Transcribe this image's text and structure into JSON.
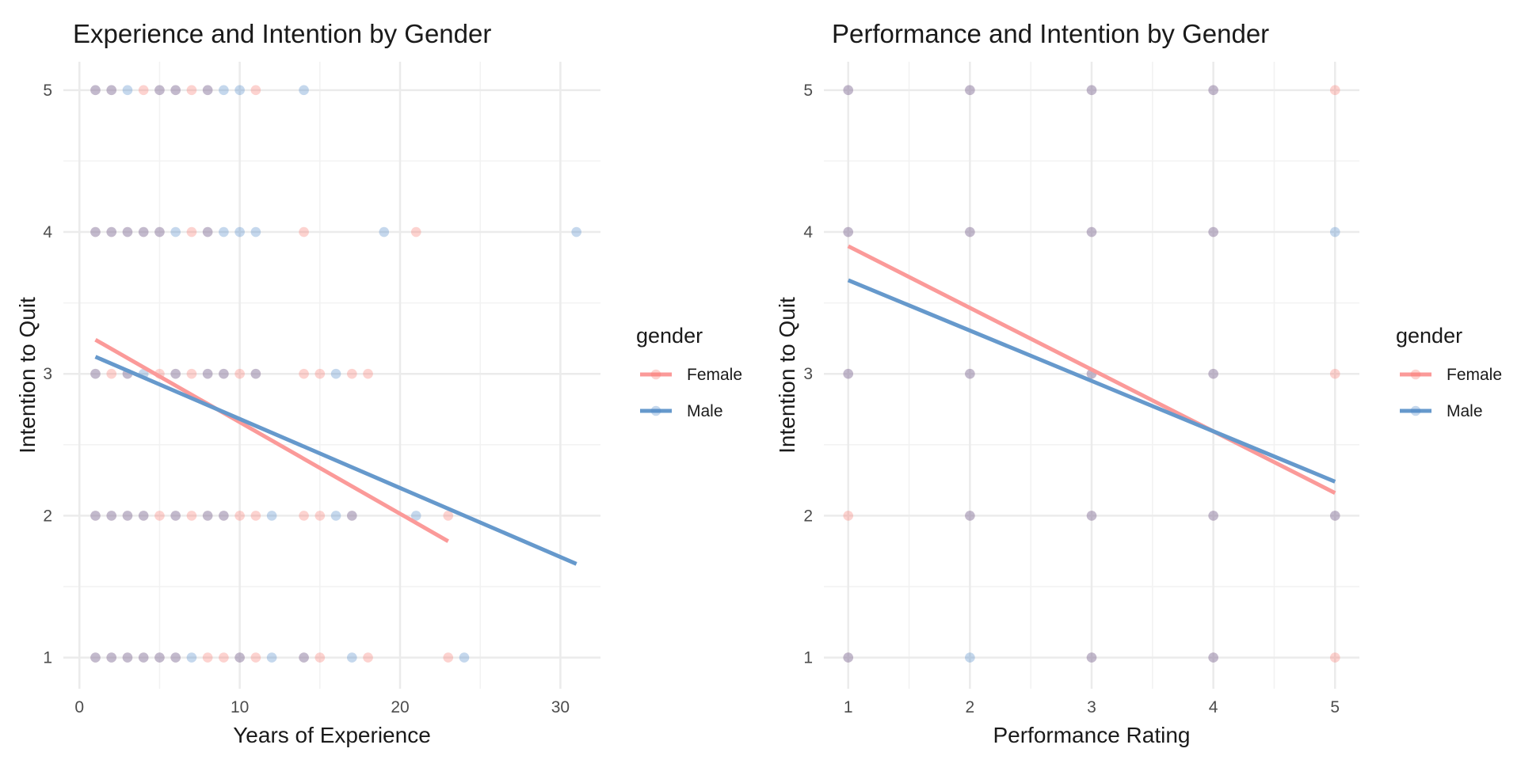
{
  "chart_data": [
    {
      "type": "scatter",
      "title": "Experience and Intention by Gender",
      "xlabel": "Years of Experience",
      "ylabel": "Intention to Quit",
      "xlim": [
        -1,
        32.5
      ],
      "ylim": [
        0.78,
        5.2
      ],
      "xticks": [
        0,
        10,
        20,
        30
      ],
      "yticks": [
        1,
        2,
        3,
        4,
        5
      ],
      "grid": true,
      "legend": {
        "title": "gender",
        "position": "right",
        "entries": [
          "Female",
          "Male"
        ]
      },
      "colors": {
        "Female": "#f8766d",
        "Male": "#4a86c8",
        "Female_line": "#fb9a99",
        "Male_line": "#6699cc"
      },
      "series": [
        {
          "name": "Female",
          "points": [
            [
              1,
              5
            ],
            [
              2,
              5
            ],
            [
              4,
              5
            ],
            [
              5,
              5
            ],
            [
              6,
              5
            ],
            [
              7,
              5
            ],
            [
              8,
              5
            ],
            [
              11,
              5
            ],
            [
              1,
              4
            ],
            [
              2,
              4
            ],
            [
              3,
              4
            ],
            [
              4,
              4
            ],
            [
              5,
              4
            ],
            [
              7,
              4
            ],
            [
              8,
              4
            ],
            [
              14,
              4
            ],
            [
              21,
              4
            ],
            [
              1,
              3
            ],
            [
              2,
              3
            ],
            [
              3,
              3
            ],
            [
              5,
              3
            ],
            [
              6,
              3
            ],
            [
              7,
              3
            ],
            [
              8,
              3
            ],
            [
              9,
              3
            ],
            [
              10,
              3
            ],
            [
              11,
              3
            ],
            [
              14,
              3
            ],
            [
              15,
              3
            ],
            [
              17,
              3
            ],
            [
              18,
              3
            ],
            [
              1,
              2
            ],
            [
              2,
              2
            ],
            [
              3,
              2
            ],
            [
              4,
              2
            ],
            [
              5,
              2
            ],
            [
              6,
              2
            ],
            [
              7,
              2
            ],
            [
              8,
              2
            ],
            [
              9,
              2
            ],
            [
              10,
              2
            ],
            [
              11,
              2
            ],
            [
              14,
              2
            ],
            [
              15,
              2
            ],
            [
              17,
              2
            ],
            [
              23,
              2
            ],
            [
              1,
              1
            ],
            [
              2,
              1
            ],
            [
              3,
              1
            ],
            [
              4,
              1
            ],
            [
              5,
              1
            ],
            [
              6,
              1
            ],
            [
              8,
              1
            ],
            [
              9,
              1
            ],
            [
              10,
              1
            ],
            [
              11,
              1
            ],
            [
              14,
              1
            ],
            [
              15,
              1
            ],
            [
              18,
              1
            ],
            [
              23,
              1
            ]
          ],
          "fit": [
            [
              1,
              3.24
            ],
            [
              23,
              1.82
            ]
          ]
        },
        {
          "name": "Male",
          "points": [
            [
              1,
              5
            ],
            [
              2,
              5
            ],
            [
              3,
              5
            ],
            [
              5,
              5
            ],
            [
              6,
              5
            ],
            [
              8,
              5
            ],
            [
              9,
              5
            ],
            [
              10,
              5
            ],
            [
              14,
              5
            ],
            [
              1,
              4
            ],
            [
              2,
              4
            ],
            [
              3,
              4
            ],
            [
              4,
              4
            ],
            [
              5,
              4
            ],
            [
              6,
              4
            ],
            [
              8,
              4
            ],
            [
              9,
              4
            ],
            [
              10,
              4
            ],
            [
              11,
              4
            ],
            [
              19,
              4
            ],
            [
              31,
              4
            ],
            [
              1,
              3
            ],
            [
              3,
              3
            ],
            [
              4,
              3
            ],
            [
              6,
              3
            ],
            [
              8,
              3
            ],
            [
              9,
              3
            ],
            [
              11,
              3
            ],
            [
              16,
              3
            ],
            [
              1,
              2
            ],
            [
              2,
              2
            ],
            [
              3,
              2
            ],
            [
              4,
              2
            ],
            [
              6,
              2
            ],
            [
              8,
              2
            ],
            [
              9,
              2
            ],
            [
              12,
              2
            ],
            [
              16,
              2
            ],
            [
              17,
              2
            ],
            [
              21,
              2
            ],
            [
              1,
              1
            ],
            [
              2,
              1
            ],
            [
              3,
              1
            ],
            [
              4,
              1
            ],
            [
              5,
              1
            ],
            [
              6,
              1
            ],
            [
              7,
              1
            ],
            [
              10,
              1
            ],
            [
              12,
              1
            ],
            [
              14,
              1
            ],
            [
              17,
              1
            ],
            [
              24,
              1
            ]
          ],
          "fit": [
            [
              1,
              3.12
            ],
            [
              31,
              1.66
            ]
          ]
        }
      ]
    },
    {
      "type": "scatter",
      "title": "Performance and Intention by Gender",
      "xlabel": "Performance Rating",
      "ylabel": "Intention to Quit",
      "xlim": [
        0.8,
        5.2
      ],
      "ylim": [
        0.78,
        5.2
      ],
      "xticks": [
        1,
        2,
        3,
        4,
        5
      ],
      "yticks": [
        1,
        2,
        3,
        4,
        5
      ],
      "grid": true,
      "legend": {
        "title": "gender",
        "position": "right",
        "entries": [
          "Female",
          "Male"
        ]
      },
      "colors": {
        "Female": "#f8766d",
        "Male": "#4a86c8",
        "Female_line": "#fb9a99",
        "Male_line": "#6699cc"
      },
      "series": [
        {
          "name": "Female",
          "points": [
            [
              1,
              1
            ],
            [
              1,
              2
            ],
            [
              1,
              3
            ],
            [
              1,
              4
            ],
            [
              1,
              5
            ],
            [
              2,
              2
            ],
            [
              2,
              3
            ],
            [
              2,
              4
            ],
            [
              2,
              5
            ],
            [
              3,
              1
            ],
            [
              3,
              2
            ],
            [
              3,
              3
            ],
            [
              3,
              4
            ],
            [
              3,
              5
            ],
            [
              4,
              1
            ],
            [
              4,
              2
            ],
            [
              4,
              3
            ],
            [
              4,
              4
            ],
            [
              4,
              5
            ],
            [
              5,
              1
            ],
            [
              5,
              2
            ],
            [
              5,
              3
            ],
            [
              5,
              5
            ]
          ],
          "fit": [
            [
              1,
              3.9
            ],
            [
              5,
              2.16
            ]
          ]
        },
        {
          "name": "Male",
          "points": [
            [
              1,
              1
            ],
            [
              1,
              3
            ],
            [
              1,
              4
            ],
            [
              1,
              5
            ],
            [
              2,
              1
            ],
            [
              2,
              2
            ],
            [
              2,
              3
            ],
            [
              2,
              4
            ],
            [
              2,
              5
            ],
            [
              3,
              1
            ],
            [
              3,
              2
            ],
            [
              3,
              3
            ],
            [
              3,
              4
            ],
            [
              3,
              5
            ],
            [
              4,
              1
            ],
            [
              4,
              2
            ],
            [
              4,
              3
            ],
            [
              4,
              4
            ],
            [
              4,
              5
            ],
            [
              5,
              2
            ],
            [
              5,
              4
            ]
          ],
          "fit": [
            [
              1,
              3.66
            ],
            [
              5,
              2.24
            ]
          ]
        }
      ]
    }
  ]
}
